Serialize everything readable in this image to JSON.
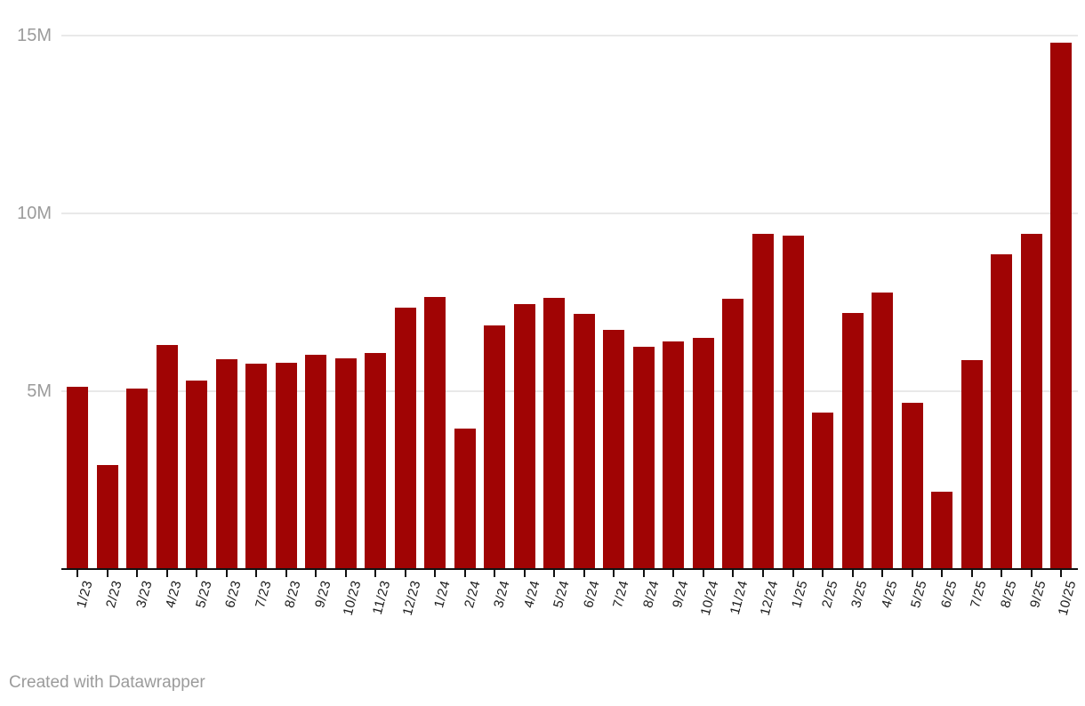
{
  "footer": {
    "credit": "Created with Datawrapper"
  },
  "colors": {
    "bar": "#a00404",
    "gridline": "#e9e9e9",
    "axis": "#111111",
    "x_label": "#1a1a1a",
    "y_label": "#9b9b9b",
    "footer": "#9b9b9b",
    "background": "#ffffff"
  },
  "chart_data": {
    "type": "bar",
    "title": "",
    "xlabel": "",
    "ylabel": "",
    "value_unit": "M",
    "ylim": [
      0,
      15
    ],
    "grid": "horizontal",
    "legend": "none",
    "y_ticks": [
      {
        "label": "5M",
        "value": 5
      },
      {
        "label": "10M",
        "value": 10
      },
      {
        "label": "15M",
        "value": 15
      }
    ],
    "categories": [
      "1/23",
      "2/23",
      "3/23",
      "4/23",
      "5/23",
      "6/23",
      "7/23",
      "8/23",
      "9/23",
      "10/23",
      "11/23",
      "12/23",
      "1/24",
      "2/24",
      "3/24",
      "4/24",
      "5/24",
      "6/24",
      "7/24",
      "8/24",
      "9/24",
      "10/24",
      "11/24",
      "12/24",
      "1/25",
      "2/25",
      "3/25",
      "4/25",
      "5/25",
      "6/25",
      "7/25",
      "8/25",
      "9/25",
      "10/25"
    ],
    "values": [
      5.13,
      2.93,
      5.07,
      6.3,
      5.3,
      5.9,
      5.78,
      5.8,
      6.03,
      5.93,
      6.07,
      7.35,
      7.65,
      3.94,
      6.85,
      7.45,
      7.63,
      7.17,
      6.72,
      6.25,
      6.4,
      6.51,
      7.6,
      9.43,
      9.38,
      4.4,
      7.2,
      7.78,
      4.68,
      2.17,
      5.88,
      8.84,
      9.42,
      14.8
    ]
  }
}
